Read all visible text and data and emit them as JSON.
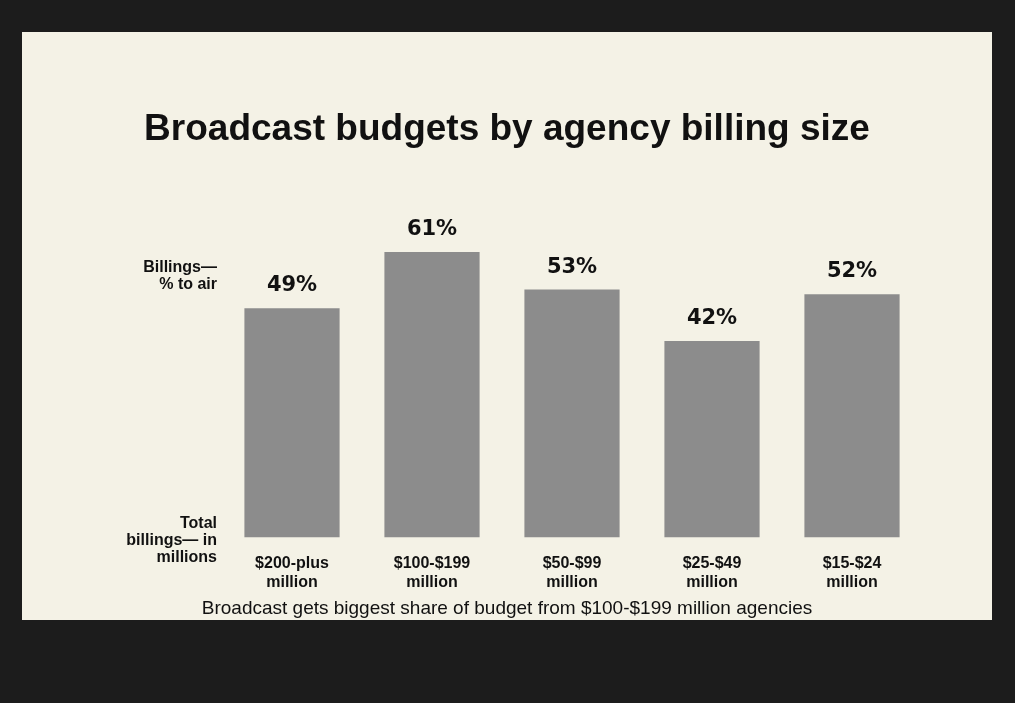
{
  "chart_data": {
    "type": "bar",
    "title": "Broadcast budgets by agency billing size",
    "ylabel": "Billings— % to air",
    "xlabel": "Total billings— in millions",
    "categories": [
      "$200-plus million",
      "$100-$199 million",
      "$50-$99 million",
      "$25-$49 million",
      "$15-$24 million"
    ],
    "values": [
      49,
      61,
      53,
      42,
      52
    ],
    "color": "#8c8c8c",
    "value_labels": [
      "49%",
      "61%",
      "53%",
      "42%",
      "52%"
    ],
    "tick_labels": "x",
    "grid": false,
    "legend": false,
    "annotations": [
      "Broadcast gets biggest share of budget from $100-$199 million agencies"
    ]
  }
}
